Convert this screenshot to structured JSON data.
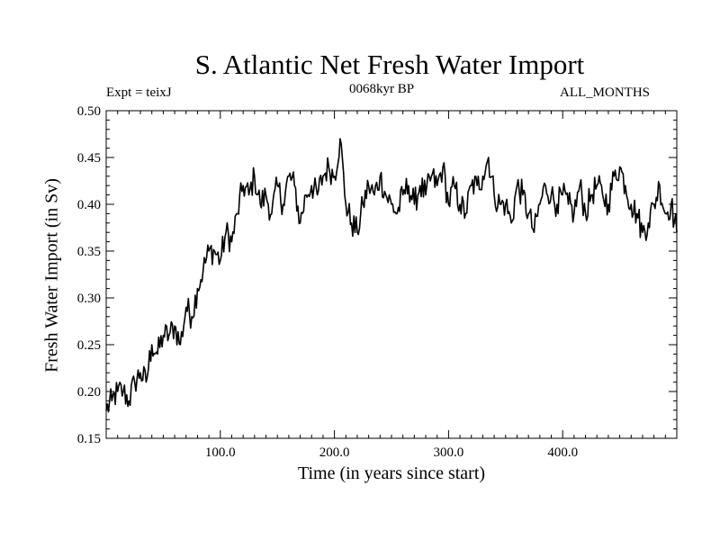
{
  "chart_data": {
    "type": "line",
    "title": "S. Atlantic Net Fresh Water Import",
    "subtitle_left": "Expt = teixJ",
    "subtitle_center": "0068kyr BP",
    "subtitle_right": "ALL_MONTHS",
    "xlabel": "Time (in years since start)",
    "ylabel": "Fresh Water Import (in Sv)",
    "xlim": [
      0,
      500
    ],
    "ylim": [
      0.15,
      0.5
    ],
    "x_ticks": [
      100,
      200,
      300,
      400
    ],
    "x_tick_labels": [
      "100.0",
      "200.0",
      "300.0",
      "400.0"
    ],
    "y_ticks": [
      0.15,
      0.2,
      0.25,
      0.3,
      0.35,
      0.4,
      0.45,
      0.5
    ],
    "y_tick_labels": [
      "0.15",
      "0.20",
      "0.25",
      "0.30",
      "0.35",
      "0.40",
      "0.45",
      "0.50"
    ],
    "grid": false,
    "series": [
      {
        "name": "Fresh Water Import",
        "x": [
          0,
          5,
          10,
          15,
          20,
          25,
          30,
          35,
          40,
          45,
          50,
          55,
          60,
          65,
          70,
          75,
          80,
          85,
          90,
          95,
          100,
          105,
          110,
          115,
          120,
          125,
          130,
          135,
          140,
          145,
          150,
          155,
          160,
          165,
          170,
          175,
          180,
          185,
          190,
          195,
          200,
          205,
          210,
          215,
          220,
          225,
          230,
          235,
          240,
          245,
          250,
          255,
          260,
          265,
          270,
          275,
          280,
          285,
          290,
          295,
          300,
          305,
          310,
          315,
          320,
          325,
          330,
          335,
          340,
          345,
          350,
          355,
          360,
          365,
          370,
          375,
          380,
          385,
          390,
          395,
          400,
          405,
          410,
          415,
          420,
          425,
          430,
          435,
          440,
          445,
          450,
          455,
          460,
          465,
          470,
          475,
          480,
          485,
          490,
          495,
          500
        ],
        "values": [
          0.18,
          0.19,
          0.2,
          0.2,
          0.19,
          0.21,
          0.22,
          0.21,
          0.25,
          0.24,
          0.26,
          0.26,
          0.27,
          0.25,
          0.29,
          0.28,
          0.31,
          0.33,
          0.35,
          0.35,
          0.34,
          0.37,
          0.36,
          0.39,
          0.42,
          0.41,
          0.43,
          0.4,
          0.41,
          0.39,
          0.42,
          0.4,
          0.43,
          0.42,
          0.38,
          0.41,
          0.42,
          0.41,
          0.43,
          0.44,
          0.43,
          0.47,
          0.4,
          0.38,
          0.37,
          0.4,
          0.42,
          0.41,
          0.43,
          0.41,
          0.4,
          0.39,
          0.41,
          0.42,
          0.4,
          0.42,
          0.41,
          0.43,
          0.42,
          0.44,
          0.4,
          0.42,
          0.4,
          0.39,
          0.42,
          0.42,
          0.43,
          0.45,
          0.41,
          0.4,
          0.4,
          0.38,
          0.42,
          0.41,
          0.39,
          0.37,
          0.4,
          0.42,
          0.41,
          0.4,
          0.41,
          0.4,
          0.39,
          0.42,
          0.39,
          0.41,
          0.42,
          0.41,
          0.4,
          0.43,
          0.44,
          0.42,
          0.4,
          0.39,
          0.37,
          0.38,
          0.4,
          0.42,
          0.39,
          0.4,
          0.37
        ]
      }
    ]
  }
}
